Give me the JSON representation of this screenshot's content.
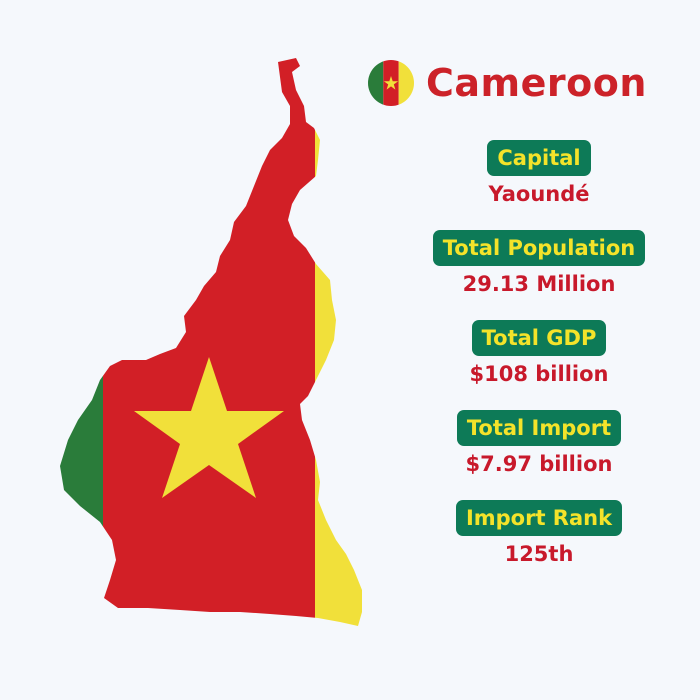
{
  "country": {
    "name": "Cameroon",
    "flag_icon": "cameroon-flag-icon",
    "colors": {
      "green": "#2a7c3a",
      "red": "#d21f26",
      "yellow": "#f1e03a",
      "label_bg": "#0d7a57",
      "label_text": "#f4e32a",
      "value_text": "#c8192b"
    }
  },
  "stats": [
    {
      "label": "Capital",
      "value": "Yaoundé"
    },
    {
      "label": "Total Population",
      "value": "29.13 Million"
    },
    {
      "label": "Total GDP",
      "value": "$108 billion"
    },
    {
      "label": "Total Import",
      "value": "$7.97 billion"
    },
    {
      "label": "Import Rank",
      "value": "125th"
    }
  ]
}
